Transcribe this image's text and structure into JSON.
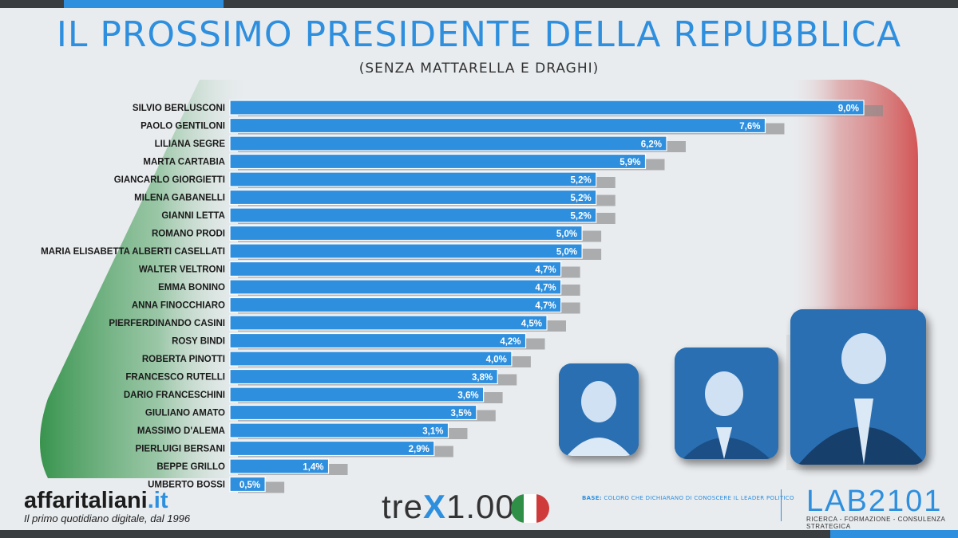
{
  "header": {
    "title": "IL PROSSIMO PRESIDENTE DELLA REPUBBLICA",
    "subtitle": "(SENZA MATTARELLA E DRAGHI)"
  },
  "colors": {
    "bar": "#2e8fde",
    "bar_border": "#ffffff",
    "shadow": "#8a8a8a",
    "flag_green": "#2f8f46",
    "flag_red": "#cf3b3b"
  },
  "chart_data": {
    "type": "bar",
    "orientation": "horizontal",
    "categories": [
      "SILVIO BERLUSCONI",
      "PAOLO GENTILONI",
      "LILIANA SEGRE",
      "MARTA CARTABIA",
      "GIANCARLO GIORGIETTI",
      "MILENA GABANELLI",
      "GIANNI LETTA",
      "ROMANO PRODI",
      "MARIA ELISABETTA ALBERTI CASELLATI",
      "WALTER VELTRONI",
      "EMMA BONINO",
      "ANNA FINOCCHIARO",
      "PIERFERDINANDO CASINI",
      "ROSY BINDI",
      "ROBERTA PINOTTI",
      "FRANCESCO RUTELLI",
      "DARIO FRANCESCHINI",
      "GIULIANO AMATO",
      "MASSIMO D'ALEMA",
      "PIERLUIGI BERSANI",
      "BEPPE GRILLO",
      "UMBERTO BOSSI"
    ],
    "values": [
      9.0,
      7.6,
      6.2,
      5.9,
      5.2,
      5.2,
      5.2,
      5.0,
      5.0,
      4.7,
      4.7,
      4.7,
      4.5,
      4.2,
      4.0,
      3.8,
      3.6,
      3.5,
      3.1,
      2.9,
      1.4,
      0.5
    ],
    "labels": [
      "9,0%",
      "7,6%",
      "6,2%",
      "5,9%",
      "5,2%",
      "5,2%",
      "5,2%",
      "5,0%",
      "5,0%",
      "4,7%",
      "4,7%",
      "4,7%",
      "4,5%",
      "4,2%",
      "4,0%",
      "3,8%",
      "3,6%",
      "3,5%",
      "3,1%",
      "2,9%",
      "1,4%",
      "0,5%"
    ],
    "unit": "%",
    "xlim": [
      0,
      9.0
    ]
  },
  "photos": [
    {
      "name": "photo-segre",
      "icon": "person-portrait"
    },
    {
      "name": "photo-gentiloni",
      "icon": "person-portrait"
    },
    {
      "name": "photo-berlusconi",
      "icon": "person-portrait"
    }
  ],
  "footer": {
    "brand_name": "affaritaliani",
    "brand_tld": ".it",
    "brand_tagline": "Il primo quotidiano digitale, dal 1996",
    "trex_a": "tre",
    "trex_x": "X",
    "trex_b": "1.000",
    "base_label": "BASE:",
    "base_text": "COLORO CHE DICHIARANO DI CONOSCERE IL LEADER POLITICO",
    "lab_name": "LAB2101",
    "lab_tagline": "RICERCA - FORMAZIONE - CONSULENZA STRATEGICA"
  }
}
